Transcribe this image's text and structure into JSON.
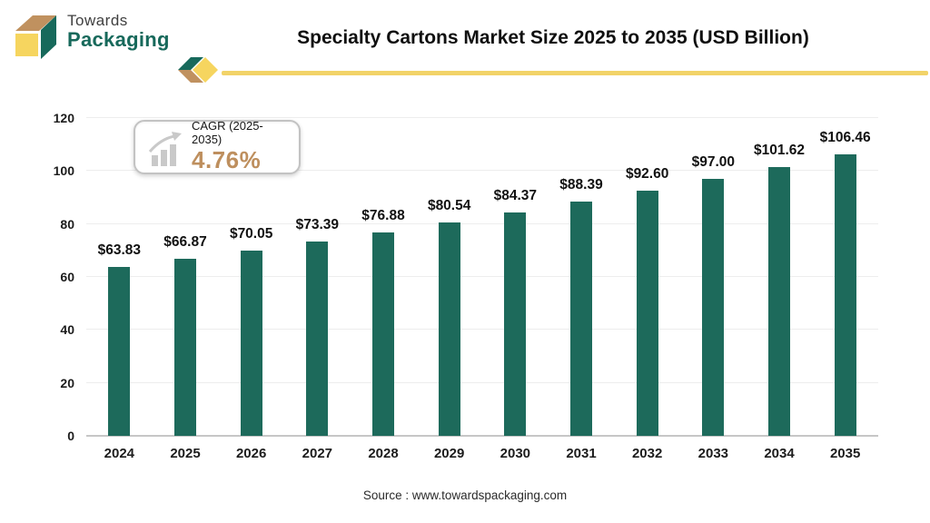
{
  "header": {
    "logo": {
      "line1": "Towards",
      "line2": "Packaging"
    },
    "title": "Specialty Cartons Market Size 2025 to 2035 (USD Billion)"
  },
  "cagr_badge": {
    "label": "CAGR (2025-2035)",
    "value": "4.76%"
  },
  "chart_data": {
    "type": "bar",
    "title": "Specialty Cartons Market Size 2025 to 2035 (USD Billion)",
    "categories": [
      "2024",
      "2025",
      "2026",
      "2027",
      "2028",
      "2029",
      "2030",
      "2031",
      "2032",
      "2033",
      "2034",
      "2035"
    ],
    "values": [
      63.83,
      66.87,
      70.05,
      73.39,
      76.88,
      80.54,
      84.37,
      88.39,
      92.6,
      97.0,
      101.62,
      106.46
    ],
    "value_labels": [
      "$63.83",
      "$66.87",
      "$70.05",
      "$73.39",
      "$76.88",
      "$80.54",
      "$84.37",
      "$88.39",
      "$92.60",
      "$97.00",
      "$101.62",
      "$106.46"
    ],
    "xlabel": "",
    "ylabel": "",
    "ylim": [
      0,
      120
    ],
    "yticks": [
      0,
      20,
      40,
      60,
      80,
      100,
      120
    ],
    "grid": true,
    "legend": "none",
    "bar_color": "#1d6a5b"
  },
  "footer": {
    "source": "Source : www.towardspackaging.com"
  },
  "colors": {
    "bar_teal": "#1d6a5b",
    "brand_teal": "#17695b",
    "accent_yellow": "#f2d368",
    "accent_tan": "#c0915f",
    "cagr_value": "#be8f5e",
    "gridline": "#ededed",
    "axis": "#c6c6c6",
    "icon_gray": "#c9c9c9"
  }
}
